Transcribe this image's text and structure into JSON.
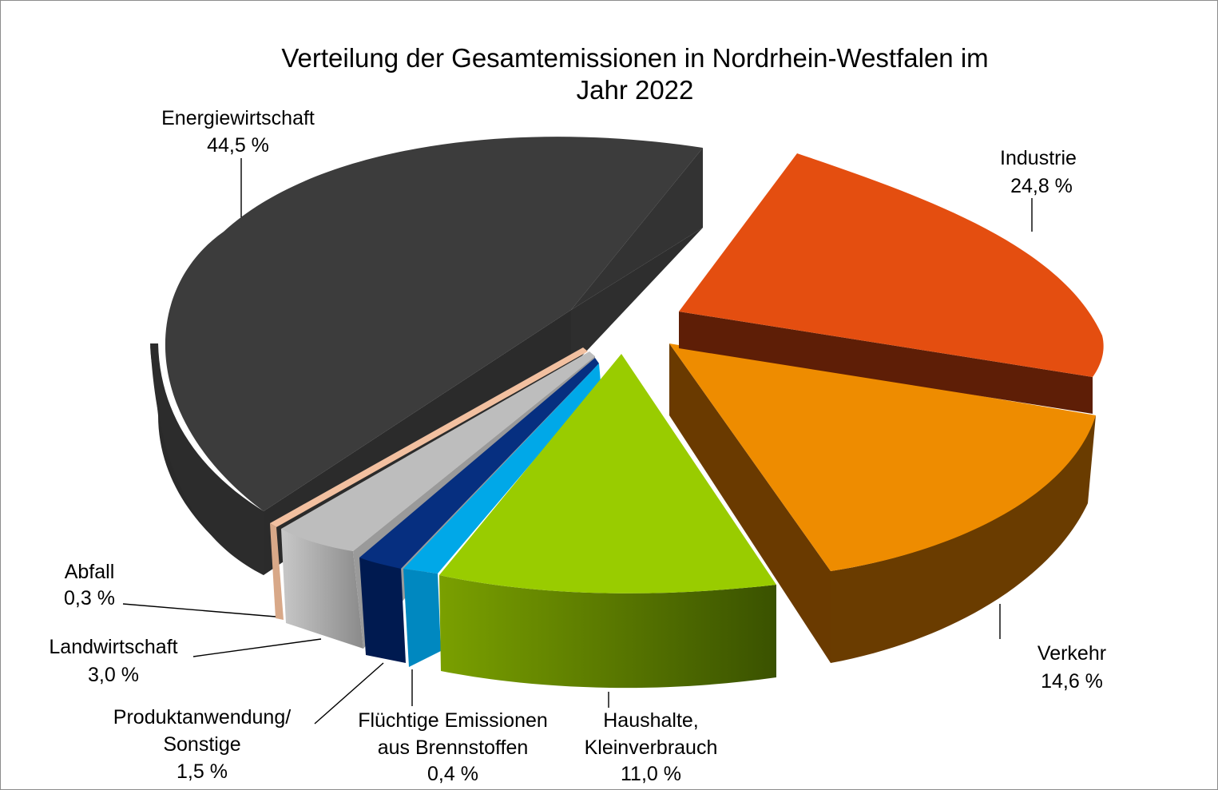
{
  "chart_data": {
    "type": "pie",
    "title_line1": "Verteilung der Gesamtemissionen in Nordrhein-Westfalen im",
    "title_line2": "Jahr 2022",
    "unit": "%",
    "slices": [
      {
        "key": "energie",
        "label_lines": [
          "Energiewirtschaft"
        ],
        "value_text": "44,5 %",
        "value": 44.5,
        "color": "#3c3c3c"
      },
      {
        "key": "industrie",
        "label_lines": [
          "Industrie"
        ],
        "value_text": "24,8 %",
        "value": 24.8,
        "color": "#e44e10"
      },
      {
        "key": "verkehr",
        "label_lines": [
          "Verkehr"
        ],
        "value_text": "14,6 %",
        "value": 14.6,
        "color": "#ee8c00"
      },
      {
        "key": "haushalte",
        "label_lines": [
          "Haushalte,",
          "Kleinverbrauch"
        ],
        "value_text": "11,0 %",
        "value": 11.0,
        "color": "#99cc00"
      },
      {
        "key": "fluechtig",
        "label_lines": [
          "Flüchtige Emissionen",
          "aus Brennstoffen"
        ],
        "value_text": "0,4 %",
        "value": 0.4,
        "color": "#00a8e8"
      },
      {
        "key": "produkt",
        "label_lines": [
          "Produktanwendung/",
          "Sonstige"
        ],
        "value_text": "1,5 %",
        "value": 1.5,
        "color": "#062f80"
      },
      {
        "key": "landwirtschaft",
        "label_lines": [
          "Landwirtschaft"
        ],
        "value_text": "3,0 %",
        "value": 3.0,
        "color": "#bdbdbd"
      },
      {
        "key": "abfall",
        "label_lines": [
          "Abfall"
        ],
        "value_text": "0,3 %",
        "value": 0.3,
        "color": "#f2c0a0"
      }
    ]
  }
}
